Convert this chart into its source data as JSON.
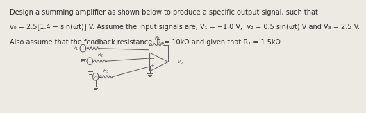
{
  "line1": "Design a summing amplifier as shown below to produce a specific output signal, such that",
  "line2": "v₀ = 2.5[1.4 − sin(ωt)] V. Assume the input signals are, V₁ = −1.0 V,  v₂ = 0.5 sin(ωt) V and V₃ = 2.5 V.",
  "line3": "Also assume that the feedback resistance, Rₙ= 10kΩ and given that R₁ = 1.5kΩ.",
  "bg_color": "#ede9e3",
  "text_color": "#2b2b2b",
  "fontsize": 7.0,
  "fig_width": 4.74,
  "fig_height": 1.45,
  "circuit_color": "#5a5a5a"
}
